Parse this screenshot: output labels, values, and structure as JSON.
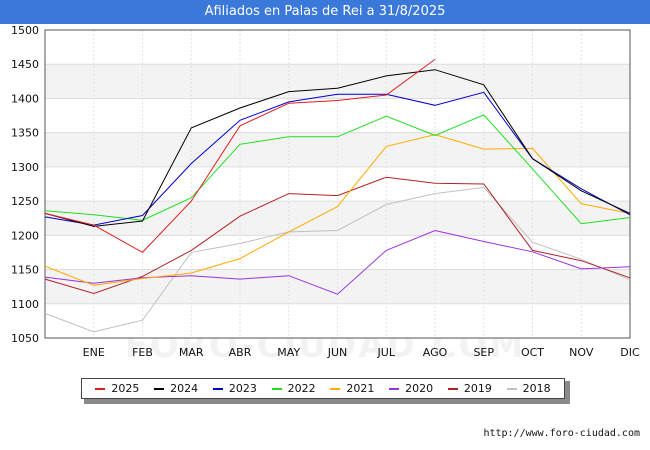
{
  "title": "Afiliados en Palas de Rei a 31/8/2025",
  "source": "http://www.foro-ciudad.com",
  "watermark": "FORO-CIUDAD.COM",
  "chart_data": {
    "type": "line",
    "title": "Afiliados en Palas de Rei a 31/8/2025",
    "xlabel": "",
    "ylabel": "",
    "categories": [
      "",
      "ENE",
      "FEB",
      "MAR",
      "ABR",
      "MAY",
      "JUN",
      "JUL",
      "AGO",
      "SEP",
      "OCT",
      "NOV",
      "DIC"
    ],
    "ylim": [
      1050,
      1500
    ],
    "yticks": [
      1050,
      1100,
      1150,
      1200,
      1250,
      1300,
      1350,
      1400,
      1450,
      1500
    ],
    "grid": true,
    "legend_position": "bottom",
    "series": [
      {
        "name": "2025",
        "color": "#e31a1c",
        "values": [
          1232,
          1215,
          1175,
          1250,
          1360,
          1393,
          1397,
          1405,
          1457,
          null,
          null,
          null,
          null
        ]
      },
      {
        "name": "2024",
        "color": "#000000",
        "values": [
          1232,
          1213,
          1221,
          1357,
          1386,
          1410,
          1415,
          1433,
          1442,
          1420,
          1312,
          1265,
          1232
        ]
      },
      {
        "name": "2023",
        "color": "#0000cc",
        "values": [
          1227,
          1215,
          1229,
          1305,
          1368,
          1395,
          1406,
          1406,
          1390,
          1409,
          1312,
          1268,
          1230
        ]
      },
      {
        "name": "2022",
        "color": "#22dd22",
        "values": [
          1236,
          1230,
          1222,
          1255,
          1333,
          1344,
          1344,
          1374,
          1346,
          1376,
          1297,
          1217,
          1226
        ]
      },
      {
        "name": "2021",
        "color": "#ffaa00",
        "values": [
          1155,
          1127,
          1137,
          1145,
          1166,
          1205,
          1242,
          1330,
          1347,
          1326,
          1327,
          1246,
          1232
        ]
      },
      {
        "name": "2020",
        "color": "#9b30e0",
        "values": [
          1139,
          1130,
          1138,
          1141,
          1136,
          1141,
          1114,
          1178,
          1207,
          1191,
          1176,
          1151,
          1154
        ]
      },
      {
        "name": "2019",
        "color": "#b22222",
        "values": [
          1136,
          1115,
          1140,
          1178,
          1228,
          1261,
          1258,
          1285,
          1276,
          1275,
          1178,
          1163,
          1138
        ]
      },
      {
        "name": "2018",
        "color": "#c0c0c0",
        "values": [
          1086,
          1059,
          1076,
          1175,
          1188,
          1205,
          1207,
          1245,
          1261,
          1270,
          1190,
          1165,
          1135
        ]
      }
    ]
  }
}
